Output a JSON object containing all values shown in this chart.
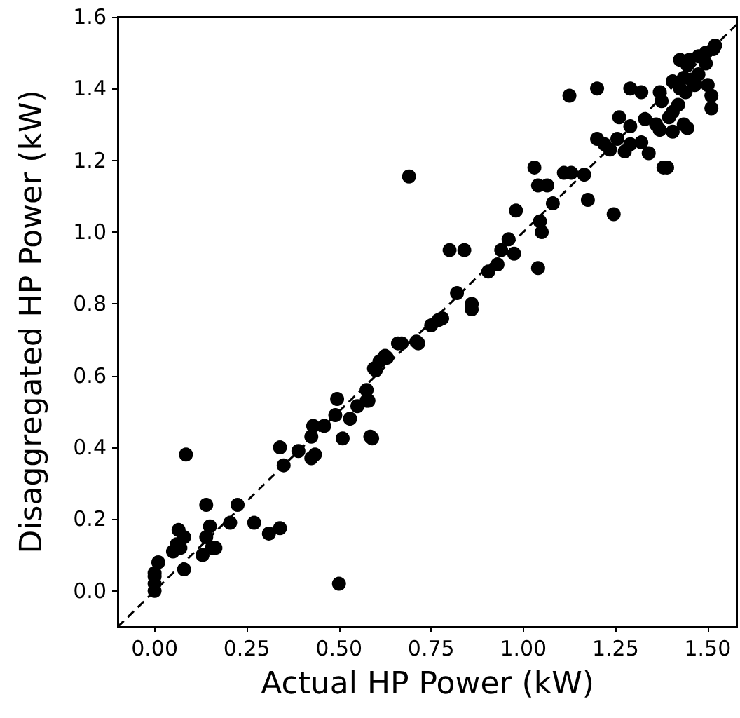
{
  "chart_data": {
    "type": "scatter",
    "xlabel": "Actual HP Power (kW)",
    "ylabel": "Disaggregated HP Power (kW)",
    "xlim": [
      -0.1,
      1.58
    ],
    "ylim": [
      -0.1,
      1.6
    ],
    "xticks": [
      {
        "value": 0,
        "label": "0.00"
      },
      {
        "value": 0.25,
        "label": "0.25"
      },
      {
        "value": 0.5,
        "label": "0.50"
      },
      {
        "value": 0.75,
        "label": "0.75"
      },
      {
        "value": 1,
        "label": "1.00"
      },
      {
        "value": 1.25,
        "label": "1.25"
      },
      {
        "value": 1.5,
        "label": "1.50"
      }
    ],
    "yticks": [
      {
        "value": 0,
        "label": "0.0"
      },
      {
        "value": 0.2,
        "label": "0.2"
      },
      {
        "value": 0.4,
        "label": "0.4"
      },
      {
        "value": 0.6,
        "label": "0.6"
      },
      {
        "value": 0.8,
        "label": "0.8"
      },
      {
        "value": 1,
        "label": "1.0"
      },
      {
        "value": 1.2,
        "label": "1.2"
      },
      {
        "value": 1.4,
        "label": "1.4"
      },
      {
        "value": 1.6,
        "label": "1.6"
      }
    ],
    "grid": false,
    "marker": "circle",
    "series": [
      {
        "type": "scatter",
        "color": "#000000",
        "x": [
          0,
          0,
          0,
          0,
          0.01,
          0.05,
          0.06,
          0.065,
          0.08,
          0.07,
          0.08,
          0.085,
          0.13,
          0.14,
          0.15,
          0.14,
          0.155,
          0.165,
          0.205,
          0.225,
          0.27,
          0.31,
          0.34,
          0.34,
          0.35,
          0.39,
          0.425,
          0.435,
          0.425,
          0.43,
          0.46,
          0.51,
          0.585,
          0.5,
          0.53,
          0.49,
          0.495,
          0.55,
          0.575,
          0.575,
          0.595,
          0.61,
          0.625,
          0.66,
          0.71,
          0.69,
          0.59,
          0.58,
          0.6,
          0.63,
          0.67,
          0.715,
          0.75,
          0.77,
          0.78,
          0.82,
          0.86,
          0.86,
          0.8,
          0.84,
          0.905,
          0.93,
          0.94,
          0.96,
          0.975,
          1.04,
          0.98,
          1.045,
          1.05,
          1.125,
          1.2,
          1.29,
          1.32,
          1.26,
          1.175,
          1.245,
          1.11,
          1.13,
          1.165,
          1.08,
          1.04,
          1.065,
          1.03,
          1.2,
          1.22,
          1.235,
          1.255,
          1.275,
          1.29,
          1.32,
          1.34,
          1.29,
          1.33,
          1.36,
          1.395,
          1.37,
          1.405,
          1.435,
          1.445,
          1.38,
          1.39,
          1.37,
          1.375,
          1.405,
          1.435,
          1.455,
          1.475,
          1.425,
          1.45,
          1.475,
          1.495,
          1.515,
          1.52,
          1.5,
          1.51,
          1.51,
          1.425,
          1.44,
          1.465,
          1.495,
          1.445,
          1.42,
          1.405
        ],
        "values": [
          0,
          0.02,
          0.04,
          0.05,
          0.08,
          0.11,
          0.13,
          0.17,
          0.15,
          0.12,
          0.06,
          0.38,
          0.1,
          0.24,
          0.18,
          0.15,
          0.12,
          0.12,
          0.19,
          0.24,
          0.19,
          0.16,
          0.175,
          0.4,
          0.35,
          0.39,
          0.37,
          0.38,
          0.43,
          0.46,
          0.46,
          0.425,
          0.43,
          0.02,
          0.48,
          0.49,
          0.535,
          0.515,
          0.53,
          0.56,
          0.62,
          0.64,
          0.655,
          0.69,
          0.695,
          1.155,
          0.425,
          0.53,
          0.615,
          0.65,
          0.69,
          0.69,
          0.74,
          0.755,
          0.76,
          0.83,
          0.8,
          0.785,
          0.95,
          0.95,
          0.89,
          0.91,
          0.95,
          0.98,
          0.94,
          0.9,
          1.06,
          1.03,
          1.0,
          1.38,
          1.4,
          1.4,
          1.39,
          1.32,
          1.09,
          1.05,
          1.165,
          1.165,
          1.16,
          1.08,
          1.13,
          1.13,
          1.18,
          1.26,
          1.245,
          1.23,
          1.26,
          1.225,
          1.245,
          1.25,
          1.22,
          1.295,
          1.315,
          1.3,
          1.32,
          1.285,
          1.28,
          1.3,
          1.29,
          1.18,
          1.18,
          1.39,
          1.365,
          1.42,
          1.43,
          1.425,
          1.44,
          1.48,
          1.48,
          1.49,
          1.5,
          1.51,
          1.52,
          1.41,
          1.38,
          1.345,
          1.4,
          1.39,
          1.41,
          1.47,
          1.465,
          1.355,
          1.335
        ]
      },
      {
        "type": "line",
        "color": "#000000",
        "line_style": "dashed",
        "marker": "none",
        "x": [
          -0.1,
          1.58
        ],
        "values": [
          -0.1,
          1.58
        ]
      }
    ]
  }
}
